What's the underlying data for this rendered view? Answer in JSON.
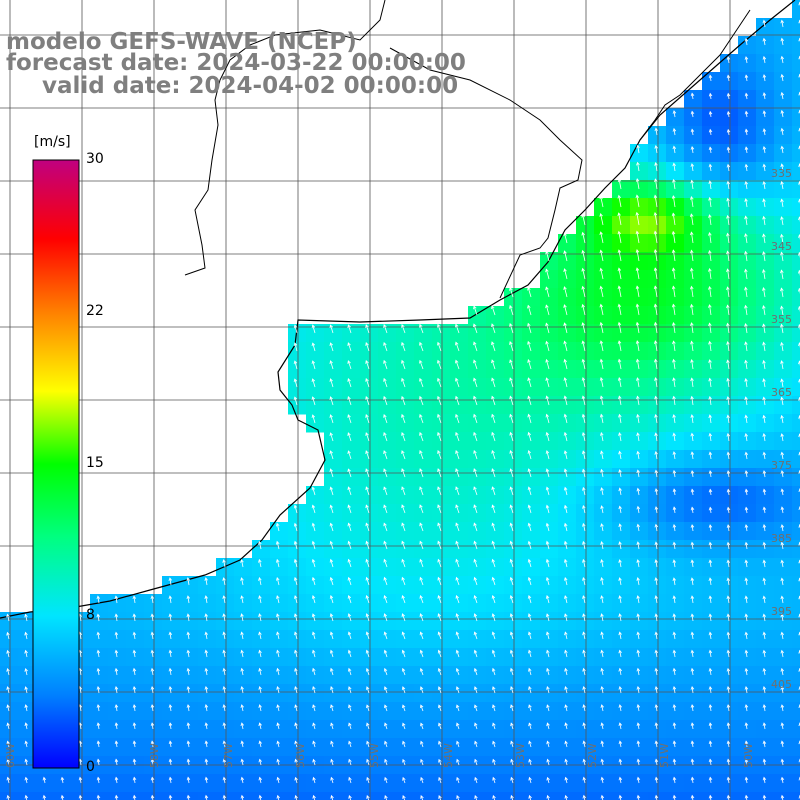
{
  "title": {
    "model": "modelo GEFS-WAVE (NCEP)",
    "forecast": "forecast date: 2024-03-22 00:00:00",
    "valid": "valid date: 2024-04-02 00:00:00"
  },
  "colorbar": {
    "unit": "[m/s]",
    "ticks": [
      "30",
      "22",
      "15",
      "8",
      "0"
    ],
    "tick_values": [
      30,
      22,
      15,
      8,
      0
    ],
    "range": [
      0,
      30
    ],
    "colors": [
      "#0000ff",
      "#0080ff",
      "#00e5ff",
      "#00ff80",
      "#00ff00",
      "#ffff00",
      "#ff8000",
      "#ff0000",
      "#c00080"
    ]
  },
  "lat_labels": [
    "335",
    "345",
    "355",
    "365",
    "375",
    "385",
    "395",
    "405"
  ],
  "lon_labels": [
    "60W",
    "58W",
    "57W",
    "56W",
    "55W",
    "54W",
    "53W",
    "52W",
    "51W",
    "50W"
  ]
}
